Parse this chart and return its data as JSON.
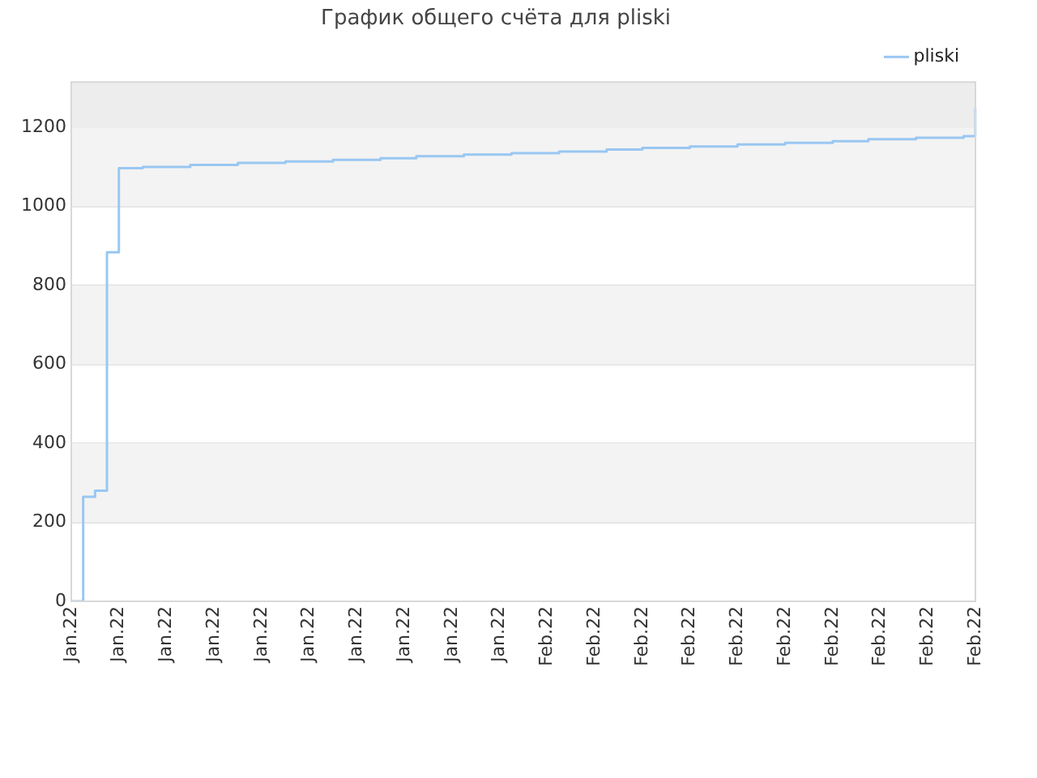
{
  "chart_data": {
    "type": "step",
    "title": "График общего счёта для pliski",
    "legend": "top right",
    "grid": "y",
    "marker": "none",
    "line_style": "solid",
    "categories": [
      "Jan.22",
      null,
      null,
      null,
      "Jan.22",
      null,
      null,
      null,
      "Jan.22",
      null,
      null,
      null,
      "Jan.22",
      null,
      null,
      null,
      "Jan.22",
      null,
      null,
      null,
      "Jan.22",
      null,
      null,
      null,
      "Jan.22",
      null,
      null,
      null,
      "Jan.22",
      null,
      null,
      null,
      "Jan.22",
      null,
      null,
      null,
      "Jan.22",
      null,
      null,
      null,
      "Feb.22",
      null,
      null,
      null,
      "Feb.22",
      null,
      null,
      null,
      "Feb.22",
      null,
      null,
      null,
      "Feb.22",
      null,
      null,
      null,
      "Feb.22",
      null,
      null,
      null,
      "Feb.22",
      null,
      null,
      null,
      "Feb.22",
      null,
      null,
      null,
      "Feb.22",
      null,
      null,
      null,
      "Feb.22",
      null,
      null,
      null,
      "Feb.22"
    ],
    "ylim": [
      0,
      1315
    ],
    "yticks": [
      0,
      200,
      400,
      600,
      800,
      1000,
      1200
    ],
    "bands": [
      {
        "axis": "y",
        "from": 200,
        "to": 400,
        "color": "#f3f3f3"
      },
      {
        "axis": "y",
        "from": 600,
        "to": 800,
        "color": "#f3f3f3"
      },
      {
        "axis": "y",
        "from": 1000,
        "to": 1200,
        "color": "#f3f3f3"
      },
      {
        "axis": "y",
        "from": 1200,
        "to": 1315,
        "color": "#ededed"
      }
    ],
    "series": [
      {
        "name": "pliski",
        "color": "#99c7f2",
        "values": [
          0,
          265,
          280,
          884,
          1097,
          1097,
          1100,
          1100,
          1100,
          1100,
          1105,
          1105,
          1105,
          1105,
          1110,
          1110,
          1110,
          1110,
          1114,
          1114,
          1114,
          1114,
          1118,
          1118,
          1118,
          1118,
          1122,
          1122,
          1122,
          1127,
          1127,
          1127,
          1127,
          1131,
          1131,
          1131,
          1131,
          1135,
          1135,
          1135,
          1135,
          1139,
          1139,
          1139,
          1139,
          1144,
          1144,
          1144,
          1148,
          1148,
          1148,
          1148,
          1152,
          1152,
          1152,
          1152,
          1157,
          1157,
          1157,
          1157,
          1161,
          1161,
          1161,
          1161,
          1165,
          1165,
          1165,
          1170,
          1170,
          1170,
          1170,
          1174,
          1174,
          1174,
          1174,
          1178,
          1250
        ]
      }
    ]
  }
}
